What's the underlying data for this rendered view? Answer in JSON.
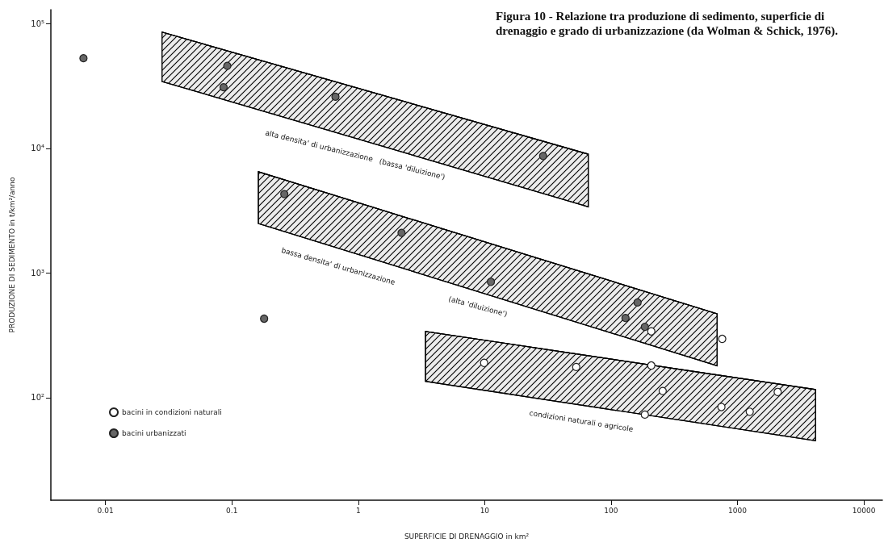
{
  "chart_data": {
    "type": "scatter",
    "title": "Figura 10 - Relazione tra produzione di sedimento, superficie di drenaggio e grado di urbanizzazione (da Wolman & Schick, 1976).",
    "xlabel": "SUPERFICIE DI DRENAGGIO in km²",
    "ylabel": "PRODUZIONE DI SEDIMENTO in t/km²/anno",
    "log": "xy",
    "grid": false,
    "legend": "bottom left",
    "xlim": [
      0.0037,
      14000
    ],
    "xticks": [
      0.01,
      0.1,
      1,
      10,
      100,
      1000,
      10000
    ],
    "ylim": [
      15,
      130000
    ],
    "yticks": [
      {
        "value": 100,
        "label": "10²"
      },
      {
        "value": 1000,
        "label": "10³"
      },
      {
        "value": 10000,
        "label": "10⁴"
      },
      {
        "value": 100000,
        "label": "10⁵"
      }
    ],
    "series": [
      {
        "type": "line",
        "color": "#000000",
        "marker": "none",
        "x": [
          0.028,
          66
        ],
        "values": [
          86000,
          9000
        ],
        "lower": [
          34500,
          3400
        ],
        "upper": [
          86000,
          9000
        ]
      },
      {
        "type": "line",
        "color": "#000000",
        "marker": "none",
        "x": [
          0.162,
          690
        ],
        "values": [
          6500,
          470
        ],
        "lower": [
          2500,
          180
        ],
        "upper": [
          6500,
          470
        ]
      },
      {
        "type": "line",
        "color": "#000000",
        "marker": "none",
        "x": [
          3.4,
          4150
        ],
        "values": [
          340,
          116
        ],
        "lower": [
          135,
          45
        ],
        "upper": [
          340,
          116
        ]
      },
      {
        "name": "bacini in condizioni naturali",
        "color": "#ffffff",
        "marker": "circle",
        "x": [
          208,
          757,
          9.9,
          53,
          208,
          256,
          2080,
          746,
          1250,
          185
        ],
        "values": [
          340,
          296,
          190,
          176,
          181,
          113,
          111,
          84,
          77,
          73
        ]
      },
      {
        "name": "bacini urbanizzati",
        "color": "#666666",
        "marker": "circle",
        "x": [
          0.0067,
          0.092,
          0.086,
          0.66,
          29,
          0.26,
          2.2,
          0.18,
          11.2,
          162,
          130,
          185
        ],
        "values": [
          53000,
          46000,
          31000,
          26000,
          8700,
          4300,
          2100,
          430,
          850,
          580,
          435,
          370
        ]
      }
    ],
    "annotations": [
      "alta densita' di urbanizzazione   (bassa 'diluizione')",
      "bassa densita' di urbanizzazione",
      "(alta 'diluizione')",
      "condizioni naturali o agricole"
    ]
  }
}
